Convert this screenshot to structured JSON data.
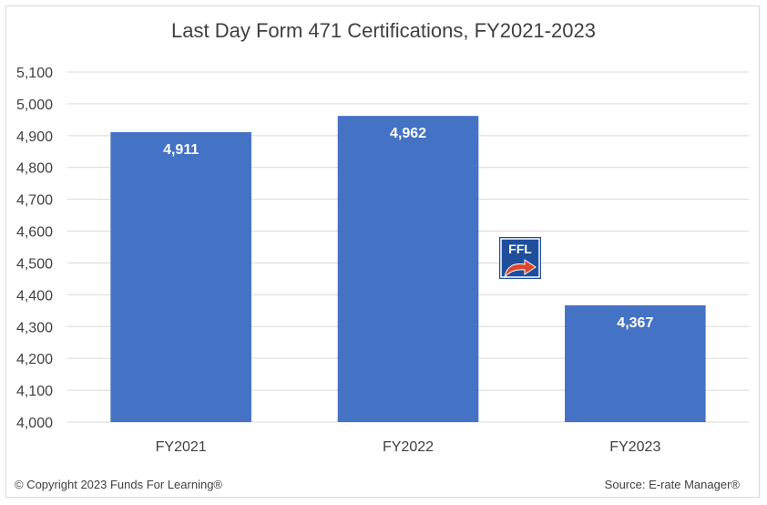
{
  "chart_data": {
    "type": "bar",
    "title": "Last Day Form 471 Certifications, FY2021-2023",
    "categories": [
      "FY2021",
      "FY2022",
      "FY2023"
    ],
    "values": [
      4911,
      4962,
      4367
    ],
    "data_labels": [
      "4,911",
      "4,962",
      "4,367"
    ],
    "ylim": [
      4000,
      5100
    ],
    "yticks": [
      4000,
      4100,
      4200,
      4300,
      4400,
      4500,
      4600,
      4700,
      4800,
      4900,
      5000,
      5100
    ],
    "ytick_labels": [
      "4,000",
      "4,100",
      "4,200",
      "4,300",
      "4,400",
      "4,500",
      "4,600",
      "4,700",
      "4,800",
      "4,900",
      "5,000",
      "5,100"
    ],
    "xlabel": "",
    "ylabel": "",
    "grid": true,
    "legend": "none",
    "bar_color": "#4472c4",
    "grid_color": "#d9d9d9"
  },
  "footer": {
    "copyright": "© Copyright 2023 Funds For Learning®",
    "source": "Source: E-rate Manager®"
  },
  "logo": {
    "text": "FFL",
    "colors": {
      "background": "#1f4e9c",
      "arrow": "#e0452b"
    }
  }
}
